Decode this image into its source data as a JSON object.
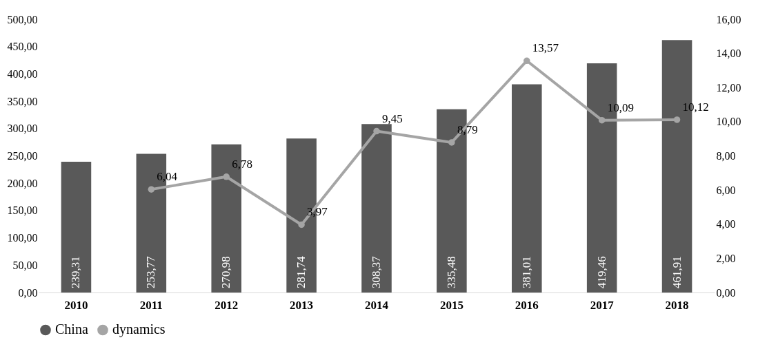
{
  "chart_data": {
    "type": "bar",
    "categories": [
      "2010",
      "2011",
      "2012",
      "2013",
      "2014",
      "2015",
      "2016",
      "2017",
      "2018"
    ],
    "series": [
      {
        "name": "China",
        "color": "#595959",
        "values": [
          239.31,
          253.77,
          270.98,
          281.74,
          308.37,
          335.48,
          381.01,
          419.46,
          461.91
        ],
        "value_labels": [
          "239,31",
          "253,77",
          "270,98",
          "281,74",
          "308,37",
          "335,48",
          "381,01",
          "419,46",
          "461,91"
        ]
      },
      {
        "name": "dynamics",
        "type": "line",
        "axis": "y2",
        "color": "#a5a5a5",
        "values": [
          null,
          6.04,
          6.78,
          3.97,
          9.45,
          8.79,
          13.57,
          10.09,
          10.12
        ],
        "value_labels": [
          null,
          "6,04",
          "6,78",
          "3,97",
          "9,45",
          "8,79",
          "13,57",
          "10,09",
          "10,12"
        ]
      }
    ],
    "ylim": [
      0,
      500
    ],
    "yticks": [
      {
        "value": 0,
        "label": "0,00"
      },
      {
        "value": 50,
        "label": "50,00"
      },
      {
        "value": 100,
        "label": "100,00"
      },
      {
        "value": 150,
        "label": "150,00"
      },
      {
        "value": 200,
        "label": "200,00"
      },
      {
        "value": 250,
        "label": "250,00"
      },
      {
        "value": 300,
        "label": "300,00"
      },
      {
        "value": 350,
        "label": "350,00"
      },
      {
        "value": 400,
        "label": "400,00"
      },
      {
        "value": 450,
        "label": "450,00"
      },
      {
        "value": 500,
        "label": "500,00"
      }
    ],
    "y2lim": [
      0,
      16
    ],
    "y2ticks": [
      {
        "value": 0,
        "label": "0,00"
      },
      {
        "value": 2,
        "label": "2,00"
      },
      {
        "value": 4,
        "label": "4,00"
      },
      {
        "value": 6,
        "label": "6,00"
      },
      {
        "value": 8,
        "label": "8,00"
      },
      {
        "value": 10,
        "label": "10,00"
      },
      {
        "value": 12,
        "label": "12,00"
      },
      {
        "value": 14,
        "label": "14,00"
      },
      {
        "value": 16,
        "label": "16,00"
      }
    ],
    "legend": "bottom",
    "marker": "circle",
    "line_style": "solid"
  }
}
